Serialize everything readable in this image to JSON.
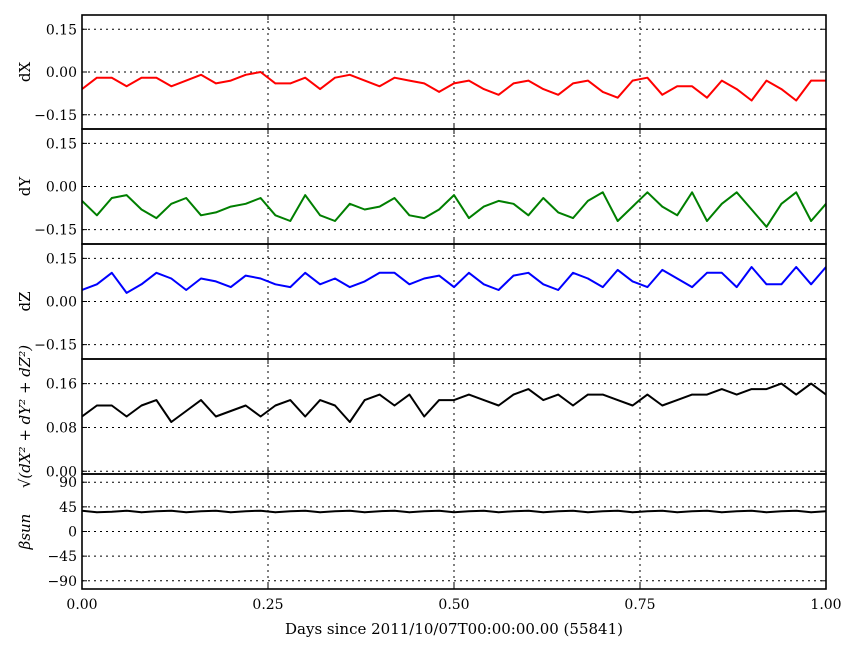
{
  "chart_data": {
    "type": "line",
    "grid": true,
    "x_range": [
      0.0,
      1.0
    ],
    "x_ticks": [
      0.0,
      0.25,
      0.5,
      0.75,
      1.0
    ],
    "x_tick_labels": [
      "0.00",
      "0.25",
      "0.50",
      "0.75",
      "1.00"
    ],
    "xlabel": "Days since 2011/10/07T00:00:00.00 (55841)",
    "panels": [
      {
        "name": "dX",
        "ylabel": "dX",
        "ylim": [
          -0.2,
          0.2
        ],
        "y_ticks": [
          -0.15,
          0.0,
          0.15
        ],
        "y_tick_labels": [
          "−0.15",
          "0.00",
          "0.15"
        ],
        "color": "#ff0000",
        "x": [
          0.0,
          0.02,
          0.04,
          0.06,
          0.08,
          0.1,
          0.12,
          0.14,
          0.16,
          0.18,
          0.2,
          0.22,
          0.24,
          0.26,
          0.28,
          0.3,
          0.32,
          0.34,
          0.36,
          0.38,
          0.4,
          0.42,
          0.44,
          0.46,
          0.48,
          0.5,
          0.52,
          0.54,
          0.56,
          0.58,
          0.6,
          0.62,
          0.64,
          0.66,
          0.68,
          0.7,
          0.72,
          0.74,
          0.76,
          0.78,
          0.8,
          0.82,
          0.84,
          0.86,
          0.88,
          0.9,
          0.92,
          0.94,
          0.96,
          0.98,
          1.0
        ],
        "values": [
          -0.06,
          -0.02,
          -0.02,
          -0.05,
          -0.02,
          -0.02,
          -0.05,
          -0.03,
          -0.01,
          -0.04,
          -0.03,
          -0.01,
          0.0,
          -0.04,
          -0.04,
          -0.02,
          -0.06,
          -0.02,
          -0.01,
          -0.03,
          -0.05,
          -0.02,
          -0.03,
          -0.04,
          -0.07,
          -0.04,
          -0.03,
          -0.06,
          -0.08,
          -0.04,
          -0.03,
          -0.06,
          -0.08,
          -0.04,
          -0.03,
          -0.07,
          -0.09,
          -0.03,
          -0.02,
          -0.08,
          -0.05,
          -0.05,
          -0.09,
          -0.03,
          -0.06,
          -0.1,
          -0.03,
          -0.06,
          -0.1,
          -0.03,
          -0.03
        ]
      },
      {
        "name": "dY",
        "ylabel": "dY",
        "ylim": [
          -0.2,
          0.2
        ],
        "y_ticks": [
          -0.15,
          0.0,
          0.15
        ],
        "y_tick_labels": [
          "−0.15",
          "0.00",
          "0.15"
        ],
        "color": "#007f00",
        "x": [
          0.0,
          0.02,
          0.04,
          0.06,
          0.08,
          0.1,
          0.12,
          0.14,
          0.16,
          0.18,
          0.2,
          0.22,
          0.24,
          0.26,
          0.28,
          0.3,
          0.32,
          0.34,
          0.36,
          0.38,
          0.4,
          0.42,
          0.44,
          0.46,
          0.48,
          0.5,
          0.52,
          0.54,
          0.56,
          0.58,
          0.6,
          0.62,
          0.64,
          0.66,
          0.68,
          0.7,
          0.72,
          0.74,
          0.76,
          0.78,
          0.8,
          0.82,
          0.84,
          0.86,
          0.88,
          0.9,
          0.92,
          0.94,
          0.96,
          0.98,
          1.0
        ],
        "values": [
          -0.05,
          -0.1,
          -0.04,
          -0.03,
          -0.08,
          -0.11,
          -0.06,
          -0.04,
          -0.1,
          -0.09,
          -0.07,
          -0.06,
          -0.04,
          -0.1,
          -0.12,
          -0.03,
          -0.1,
          -0.12,
          -0.06,
          -0.08,
          -0.07,
          -0.04,
          -0.1,
          -0.11,
          -0.08,
          -0.03,
          -0.11,
          -0.07,
          -0.05,
          -0.06,
          -0.1,
          -0.04,
          -0.09,
          -0.11,
          -0.05,
          -0.02,
          -0.12,
          -0.07,
          -0.02,
          -0.07,
          -0.1,
          -0.02,
          -0.12,
          -0.06,
          -0.02,
          -0.08,
          -0.14,
          -0.06,
          -0.02,
          -0.12,
          -0.06
        ]
      },
      {
        "name": "dZ",
        "ylabel": "dZ",
        "ylim": [
          -0.2,
          0.2
        ],
        "y_ticks": [
          -0.15,
          0.0,
          0.15
        ],
        "y_tick_labels": [
          "−0.15",
          "0.00",
          "0.15"
        ],
        "color": "#0000ff",
        "x": [
          0.0,
          0.02,
          0.04,
          0.06,
          0.08,
          0.1,
          0.12,
          0.14,
          0.16,
          0.18,
          0.2,
          0.22,
          0.24,
          0.26,
          0.28,
          0.3,
          0.32,
          0.34,
          0.36,
          0.38,
          0.4,
          0.42,
          0.44,
          0.46,
          0.48,
          0.5,
          0.52,
          0.54,
          0.56,
          0.58,
          0.6,
          0.62,
          0.64,
          0.66,
          0.68,
          0.7,
          0.72,
          0.74,
          0.76,
          0.78,
          0.8,
          0.82,
          0.84,
          0.86,
          0.88,
          0.9,
          0.92,
          0.94,
          0.96,
          0.98,
          1.0
        ],
        "values": [
          0.04,
          0.06,
          0.1,
          0.03,
          0.06,
          0.1,
          0.08,
          0.04,
          0.08,
          0.07,
          0.05,
          0.09,
          0.08,
          0.06,
          0.05,
          0.1,
          0.06,
          0.08,
          0.05,
          0.07,
          0.1,
          0.1,
          0.06,
          0.08,
          0.09,
          0.05,
          0.1,
          0.06,
          0.04,
          0.09,
          0.1,
          0.06,
          0.04,
          0.1,
          0.08,
          0.05,
          0.11,
          0.07,
          0.05,
          0.11,
          0.08,
          0.05,
          0.1,
          0.1,
          0.05,
          0.12,
          0.06,
          0.06,
          0.12,
          0.06,
          0.12
        ]
      },
      {
        "name": "sqrt(dX^2+dY^2+dZ^2)",
        "ylabel": "√(dX² + dY² + dZ²)",
        "ylim": [
          -0.005,
          0.205
        ],
        "y_ticks": [
          0.0,
          0.08,
          0.16
        ],
        "y_tick_labels": [
          "0.00",
          "0.08",
          "0.16"
        ],
        "color": "#000000",
        "x": [
          0.0,
          0.02,
          0.04,
          0.06,
          0.08,
          0.1,
          0.12,
          0.14,
          0.16,
          0.18,
          0.2,
          0.22,
          0.24,
          0.26,
          0.28,
          0.3,
          0.32,
          0.34,
          0.36,
          0.38,
          0.4,
          0.42,
          0.44,
          0.46,
          0.48,
          0.5,
          0.52,
          0.54,
          0.56,
          0.58,
          0.6,
          0.62,
          0.64,
          0.66,
          0.68,
          0.7,
          0.72,
          0.74,
          0.76,
          0.78,
          0.8,
          0.82,
          0.84,
          0.86,
          0.88,
          0.9,
          0.92,
          0.94,
          0.96,
          0.98,
          1.0
        ],
        "values": [
          0.1,
          0.12,
          0.12,
          0.1,
          0.12,
          0.13,
          0.09,
          0.11,
          0.13,
          0.1,
          0.11,
          0.12,
          0.1,
          0.12,
          0.13,
          0.1,
          0.13,
          0.12,
          0.09,
          0.13,
          0.14,
          0.12,
          0.14,
          0.1,
          0.13,
          0.13,
          0.14,
          0.13,
          0.12,
          0.14,
          0.15,
          0.13,
          0.14,
          0.12,
          0.14,
          0.14,
          0.13,
          0.12,
          0.14,
          0.12,
          0.13,
          0.14,
          0.14,
          0.15,
          0.14,
          0.15,
          0.15,
          0.16,
          0.14,
          0.16,
          0.14
        ]
      },
      {
        "name": "beta_sun",
        "ylabel": "βsun",
        "ylim": [
          -105,
          105
        ],
        "y_ticks": [
          -90,
          -45,
          0,
          45,
          90
        ],
        "y_tick_labels": [
          "−90",
          "−45",
          "0",
          "45",
          "90"
        ],
        "color": "#000000",
        "x": [
          0.0,
          0.02,
          0.04,
          0.06,
          0.08,
          0.1,
          0.12,
          0.14,
          0.16,
          0.18,
          0.2,
          0.22,
          0.24,
          0.26,
          0.28,
          0.3,
          0.32,
          0.34,
          0.36,
          0.38,
          0.4,
          0.42,
          0.44,
          0.46,
          0.48,
          0.5,
          0.52,
          0.54,
          0.56,
          0.58,
          0.6,
          0.62,
          0.64,
          0.66,
          0.68,
          0.7,
          0.72,
          0.74,
          0.76,
          0.78,
          0.8,
          0.82,
          0.84,
          0.86,
          0.88,
          0.9,
          0.92,
          0.94,
          0.96,
          0.98,
          1.0
        ],
        "values": [
          38,
          35,
          36,
          38,
          35,
          37,
          38,
          35,
          37,
          38,
          35,
          37,
          38,
          35,
          37,
          38,
          35,
          37,
          38,
          35,
          37,
          38,
          35,
          37,
          38,
          35,
          37,
          38,
          35,
          37,
          38,
          35,
          37,
          38,
          35,
          37,
          38,
          35,
          37,
          38,
          35,
          37,
          38,
          35,
          37,
          38,
          35,
          37,
          38,
          35,
          37
        ]
      }
    ]
  }
}
